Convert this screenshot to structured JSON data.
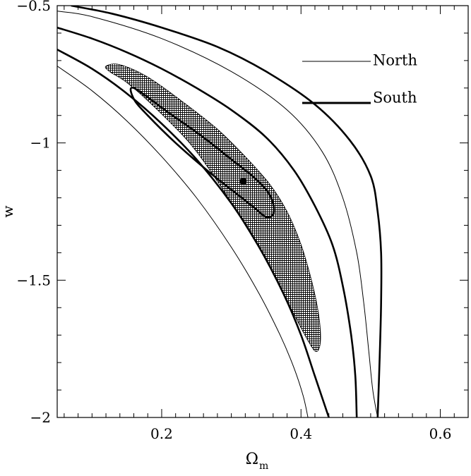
{
  "chart_data": {
    "type": "line",
    "title": "",
    "xlabel": "Ω",
    "xlabel_sub": "m",
    "ylabel": "w",
    "xlim": [
      0.05,
      0.64
    ],
    "ylim": [
      -2.0,
      -0.5
    ],
    "xticks": [
      {
        "value": 0.2,
        "label": "0.2"
      },
      {
        "value": 0.4,
        "label": "0.4"
      },
      {
        "value": 0.6,
        "label": "0.6"
      }
    ],
    "yticks": [
      {
        "value": -0.5,
        "label": "−0.5"
      },
      {
        "value": -1.0,
        "label": "−1"
      },
      {
        "value": -1.5,
        "label": "−1.5"
      },
      {
        "value": -2.0,
        "label": "−2"
      }
    ],
    "grid": false,
    "legend": {
      "placement": "top-right",
      "entries": [
        {
          "label": "North",
          "style": "thin"
        },
        {
          "label": "South",
          "style": "thick"
        }
      ]
    },
    "best_fit_point": {
      "x": 0.317,
      "y": -1.14
    },
    "series": [
      {
        "name": "North",
        "kind": "hatched-region",
        "level": "inner",
        "points": [
          [
            0.12,
            -0.72
          ],
          [
            0.14,
            -0.715
          ],
          [
            0.18,
            -0.76
          ],
          [
            0.23,
            -0.85
          ],
          [
            0.28,
            -0.95
          ],
          [
            0.32,
            -1.05
          ],
          [
            0.355,
            -1.15
          ],
          [
            0.38,
            -1.25
          ],
          [
            0.4,
            -1.37
          ],
          [
            0.415,
            -1.5
          ],
          [
            0.425,
            -1.62
          ],
          [
            0.428,
            -1.72
          ],
          [
            0.422,
            -1.76
          ],
          [
            0.41,
            -1.72
          ],
          [
            0.385,
            -1.6
          ],
          [
            0.355,
            -1.45
          ],
          [
            0.32,
            -1.3
          ],
          [
            0.28,
            -1.14
          ],
          [
            0.24,
            -1.0
          ],
          [
            0.19,
            -0.87
          ],
          [
            0.15,
            -0.78
          ],
          [
            0.125,
            -0.74
          ],
          [
            0.12,
            -0.72
          ]
        ]
      },
      {
        "name": "North",
        "kind": "contour",
        "level": "outer-upper",
        "points": [
          [
            0.05,
            -0.52
          ],
          [
            0.1,
            -0.54
          ],
          [
            0.2,
            -0.62
          ],
          [
            0.3,
            -0.74
          ],
          [
            0.38,
            -0.88
          ],
          [
            0.43,
            -1.03
          ],
          [
            0.46,
            -1.2
          ],
          [
            0.48,
            -1.4
          ],
          [
            0.49,
            -1.58
          ],
          [
            0.497,
            -1.75
          ],
          [
            0.503,
            -1.9
          ],
          [
            0.51,
            -2.0
          ]
        ]
      },
      {
        "name": "North",
        "kind": "contour",
        "level": "outer-lower",
        "points": [
          [
            0.05,
            -0.72
          ],
          [
            0.1,
            -0.81
          ],
          [
            0.15,
            -0.92
          ],
          [
            0.2,
            -1.05
          ],
          [
            0.25,
            -1.2
          ],
          [
            0.3,
            -1.38
          ],
          [
            0.34,
            -1.55
          ],
          [
            0.37,
            -1.7
          ],
          [
            0.39,
            -1.82
          ],
          [
            0.403,
            -1.92
          ],
          [
            0.41,
            -2.0
          ]
        ]
      },
      {
        "name": "South",
        "kind": "contour",
        "level": "inner",
        "points": [
          [
            0.16,
            -0.8
          ],
          [
            0.21,
            -0.89
          ],
          [
            0.26,
            -0.98
          ],
          [
            0.3,
            -1.06
          ],
          [
            0.33,
            -1.12
          ],
          [
            0.35,
            -1.17
          ],
          [
            0.36,
            -1.22
          ],
          [
            0.36,
            -1.26
          ],
          [
            0.35,
            -1.27
          ],
          [
            0.335,
            -1.24
          ],
          [
            0.31,
            -1.19
          ],
          [
            0.27,
            -1.11
          ],
          [
            0.22,
            -1.0
          ],
          [
            0.18,
            -0.9
          ],
          [
            0.16,
            -0.84
          ],
          [
            0.16,
            -0.8
          ]
        ]
      },
      {
        "name": "South",
        "kind": "contour",
        "level": "middle",
        "points": [
          [
            0.05,
            -0.58
          ],
          [
            0.1,
            -0.62
          ],
          [
            0.15,
            -0.67
          ],
          [
            0.2,
            -0.73
          ],
          [
            0.25,
            -0.8
          ],
          [
            0.3,
            -0.88
          ],
          [
            0.35,
            -0.98
          ],
          [
            0.39,
            -1.1
          ],
          [
            0.42,
            -1.23
          ],
          [
            0.445,
            -1.37
          ],
          [
            0.46,
            -1.52
          ],
          [
            0.472,
            -1.7
          ],
          [
            0.478,
            -1.85
          ],
          [
            0.48,
            -2.0
          ]
        ]
      },
      {
        "name": "South",
        "kind": "contour",
        "level": "outer-upper",
        "points": [
          [
            0.07,
            -0.5
          ],
          [
            0.13,
            -0.53
          ],
          [
            0.2,
            -0.58
          ],
          [
            0.28,
            -0.65
          ],
          [
            0.35,
            -0.74
          ],
          [
            0.42,
            -0.86
          ],
          [
            0.47,
            -0.99
          ],
          [
            0.5,
            -1.12
          ],
          [
            0.51,
            -1.25
          ],
          [
            0.515,
            -1.4
          ],
          [
            0.515,
            -1.58
          ],
          [
            0.513,
            -1.78
          ],
          [
            0.51,
            -2.0
          ]
        ]
      },
      {
        "name": "South",
        "kind": "contour",
        "level": "outer-lower",
        "points": [
          [
            0.05,
            -0.66
          ],
          [
            0.1,
            -0.73
          ],
          [
            0.15,
            -0.82
          ],
          [
            0.2,
            -0.93
          ],
          [
            0.25,
            -1.06
          ],
          [
            0.3,
            -1.22
          ],
          [
            0.34,
            -1.38
          ],
          [
            0.375,
            -1.55
          ],
          [
            0.4,
            -1.7
          ],
          [
            0.42,
            -1.85
          ],
          [
            0.44,
            -2.0
          ]
        ]
      }
    ]
  }
}
